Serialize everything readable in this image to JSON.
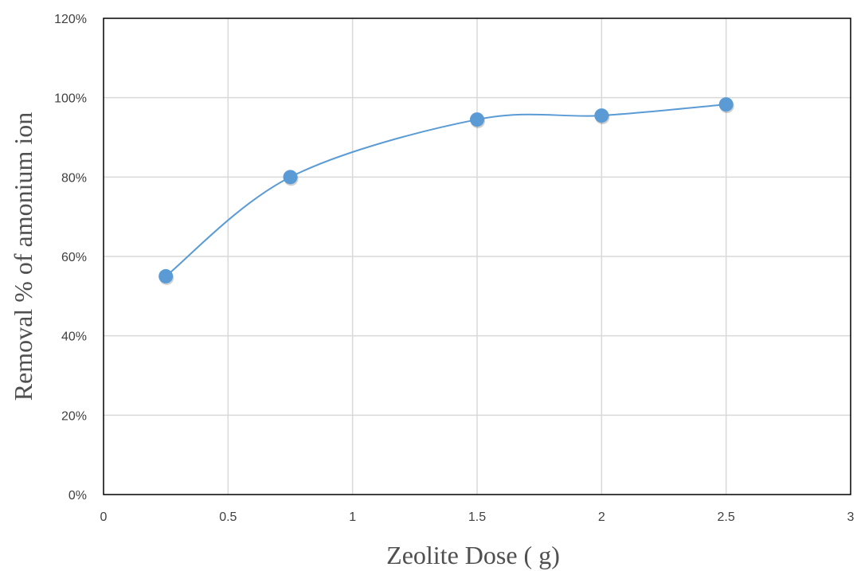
{
  "chart_data": {
    "type": "line",
    "title": "",
    "xlabel": "Zeolite Dose ( g)",
    "ylabel": "Removal % of amonium ion",
    "xlim": [
      0,
      3
    ],
    "ylim": [
      0,
      1.2
    ],
    "x_ticks": [
      "0",
      "0.5",
      "1",
      "1.5",
      "2",
      "2.5",
      "3"
    ],
    "x_tick_values": [
      0,
      0.5,
      1,
      1.5,
      2,
      2.5,
      3
    ],
    "y_ticks": [
      "0%",
      "20%",
      "40%",
      "60%",
      "80%",
      "100%",
      "120%"
    ],
    "y_tick_values": [
      0,
      0.2,
      0.4,
      0.6,
      0.8,
      1.0,
      1.2
    ],
    "grid": true,
    "smooth": true,
    "legend": "none",
    "series": [
      {
        "color": "#5b9bd5",
        "x": [
          0.25,
          0.75,
          1.5,
          2.0,
          2.5
        ],
        "y": [
          0.55,
          0.8,
          0.945,
          0.955,
          0.983
        ]
      }
    ]
  }
}
